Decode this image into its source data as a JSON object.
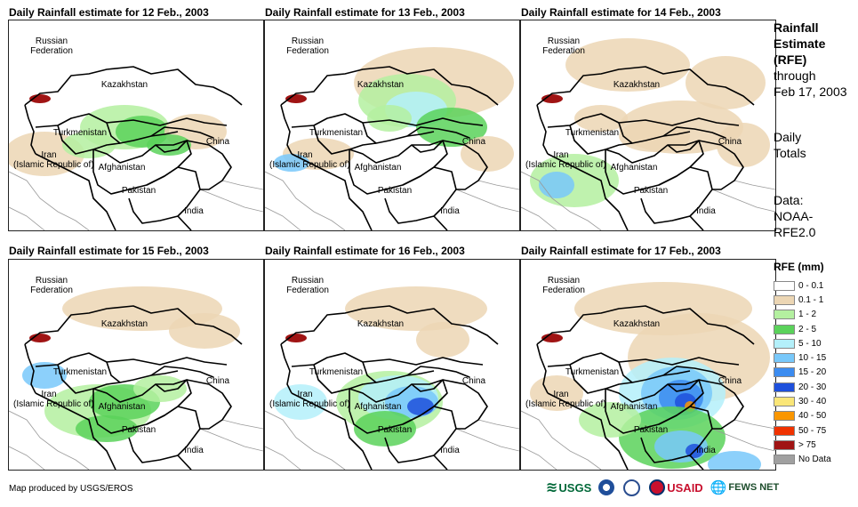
{
  "panels": [
    {
      "title": "Daily Rainfall estimate for 12 Feb., 2003"
    },
    {
      "title": "Daily Rainfall estimate for 13 Feb., 2003"
    },
    {
      "title": "Daily Rainfall estimate for 14 Feb., 2003"
    },
    {
      "title": "Daily Rainfall estimate for 15 Feb., 2003"
    },
    {
      "title": "Daily Rainfall estimate for 16 Feb., 2003"
    },
    {
      "title": "Daily Rainfall estimate for 17 Feb., 2003"
    }
  ],
  "map_labels": {
    "russia_1": "Russian",
    "russia_2": "Federation",
    "kazakhstan": "Kazakhstan",
    "turkmenistan": "Turkmenistan",
    "iran_1": "Iran",
    "iran_2": "(Islamic Republic of)",
    "afghanistan": "Afghanistan",
    "pakistan": "Pakistan",
    "china": "China",
    "india": "India"
  },
  "side": {
    "title_1": "Rainfall",
    "title_2": "Estimate",
    "title_3": "(RFE)",
    "through_1": "through",
    "through_2": "Feb 17, 2003",
    "totals_1": "Daily",
    "totals_2": "Totals",
    "data_1": "Data:",
    "data_2": "NOAA-",
    "data_3": "RFE2.0"
  },
  "legend": {
    "title": "RFE (mm)",
    "items": [
      {
        "label": "0 - 0.1",
        "color": "#ffffff"
      },
      {
        "label": "0.1 - 1",
        "color": "#ecd6b4"
      },
      {
        "label": "1 - 2",
        "color": "#b4f0a0"
      },
      {
        "label": "2 - 5",
        "color": "#5ad25a"
      },
      {
        "label": "5 - 10",
        "color": "#b4f0fa"
      },
      {
        "label": "10 - 15",
        "color": "#78c8fa"
      },
      {
        "label": "15 - 20",
        "color": "#3c8cf0"
      },
      {
        "label": "20 - 30",
        "color": "#1e50dc"
      },
      {
        "label": "30 - 40",
        "color": "#fae678"
      },
      {
        "label": "40 - 50",
        "color": "#fa9600"
      },
      {
        "label": "50 - 75",
        "color": "#f03200"
      },
      {
        "label": "> 75",
        "color": "#a01414"
      },
      {
        "label": "No Data",
        "color": "#a0a0a0"
      }
    ]
  },
  "credit": "Map produced by USGS/EROS",
  "logos": {
    "usgs": "USGS",
    "usaid": "USAID",
    "fews": "FEWS NET"
  }
}
